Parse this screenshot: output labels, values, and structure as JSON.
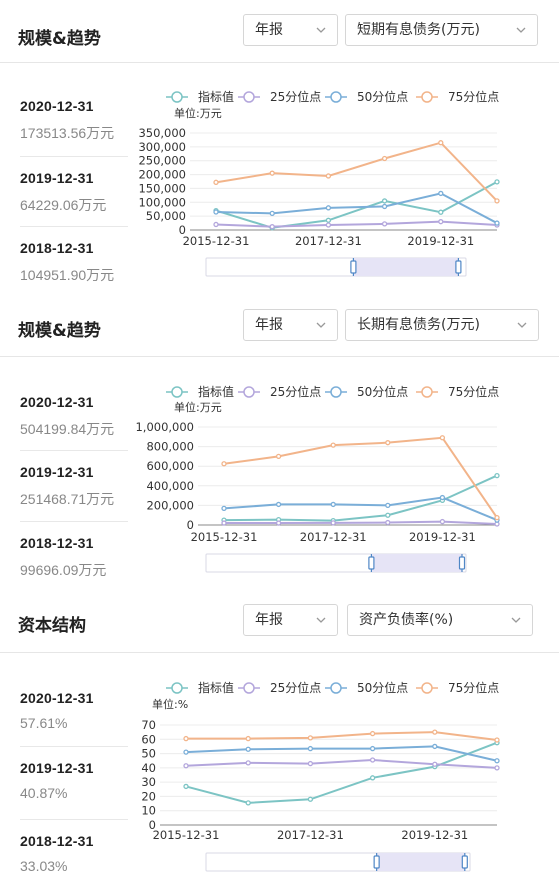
{
  "sections": [
    {
      "title": "规模&趋势",
      "period_select": "年报",
      "metric_select": "短期有息债务(万元)",
      "stats": [
        {
          "date": "2020-12-31",
          "value": "173513.56万元"
        },
        {
          "date": "2019-12-31",
          "value": "64229.06万元"
        },
        {
          "date": "2018-12-31",
          "value": "104951.90万元"
        }
      ]
    },
    {
      "title": "规模&趋势",
      "period_select": "年报",
      "metric_select": "长期有息债务(万元)",
      "stats": [
        {
          "date": "2020-12-31",
          "value": "504199.84万元"
        },
        {
          "date": "2019-12-31",
          "value": "251468.71万元"
        },
        {
          "date": "2018-12-31",
          "value": "99696.09万元"
        }
      ]
    },
    {
      "title": "资本结构",
      "period_select": "年报",
      "metric_select": "资产负债率(%)",
      "stats": [
        {
          "date": "2020-12-31",
          "value": "57.61%"
        },
        {
          "date": "2019-12-31",
          "value": "40.87%"
        },
        {
          "date": "2018-12-31",
          "value": "33.03%"
        }
      ]
    }
  ],
  "colors": {
    "indicator": "#7cc4c4",
    "p25": "#b3a6dc",
    "p50": "#7aaed8",
    "p75": "#f2b48a",
    "grid": "#ececec",
    "axis": "#333333",
    "slider_fill": "#e6e4f6",
    "handle": "#4f87c6"
  },
  "chart_data": [
    {
      "type": "line",
      "unit_label": "单位:万元",
      "x": [
        "2015-12-31",
        "2016-12-31",
        "2017-12-31",
        "2018-12-31",
        "2019-12-31",
        "2020-12-31"
      ],
      "x_tick_labels": [
        "2015-12-31",
        "2017-12-31",
        "2019-12-31"
      ],
      "y_ticks": [
        "0",
        "50,000",
        "100,000",
        "150,000",
        "200,000",
        "250,000",
        "300,000",
        "350,000"
      ],
      "ylim": [
        0,
        350000
      ],
      "grid": true,
      "legend": "top",
      "series": [
        {
          "name": "指标值",
          "color_key": "indicator",
          "values": [
            70000,
            8000,
            35000,
            104951.9,
            64229.06,
            173513.56
          ]
        },
        {
          "name": "25分位点",
          "color_key": "p25",
          "values": [
            20000,
            12000,
            18000,
            22000,
            30000,
            18000
          ]
        },
        {
          "name": "50分位点",
          "color_key": "p50",
          "values": [
            65000,
            60000,
            80000,
            85000,
            132000,
            25000
          ]
        },
        {
          "name": "75分位点",
          "color_key": "p75",
          "values": [
            172000,
            205000,
            195000,
            258000,
            315000,
            105000
          ]
        }
      ],
      "slider_range": [
        0.74,
        0.94
      ]
    },
    {
      "type": "line",
      "unit_label": "单位:万元",
      "x": [
        "2015-12-31",
        "2016-12-31",
        "2017-12-31",
        "2018-12-31",
        "2019-12-31",
        "2020-12-31"
      ],
      "x_tick_labels": [
        "2015-12-31",
        "2017-12-31",
        "2019-12-31"
      ],
      "y_ticks": [
        "0",
        "200,000",
        "400,000",
        "600,000",
        "800,000",
        "1,000,000"
      ],
      "ylim": [
        0,
        1000000
      ],
      "grid": true,
      "legend": "top",
      "series": [
        {
          "name": "指标值",
          "color_key": "indicator",
          "values": [
            50000,
            55000,
            45000,
            99696.09,
            251468.71,
            504199.84
          ]
        },
        {
          "name": "25分位点",
          "color_key": "p25",
          "values": [
            20000,
            20000,
            22000,
            25000,
            35000,
            10000
          ]
        },
        {
          "name": "50分位点",
          "color_key": "p50",
          "values": [
            170000,
            210000,
            210000,
            200000,
            280000,
            50000
          ]
        },
        {
          "name": "75分位点",
          "color_key": "p75",
          "values": [
            625000,
            700000,
            815000,
            840000,
            890000,
            75000
          ]
        }
      ],
      "slider_range": [
        0.79,
        0.96
      ]
    },
    {
      "type": "line",
      "unit_label": "单位:%",
      "x": [
        "2015-12-31",
        "2016-12-31",
        "2017-12-31",
        "2018-12-31",
        "2019-12-31",
        "2020-12-31"
      ],
      "x_tick_labels": [
        "2015-12-31",
        "2017-12-31",
        "2019-12-31"
      ],
      "y_ticks": [
        "0",
        "10",
        "20",
        "30",
        "40",
        "50",
        "60",
        "70"
      ],
      "ylim": [
        0,
        70
      ],
      "grid": true,
      "legend": "top",
      "series": [
        {
          "name": "指标值",
          "color_key": "indicator",
          "values": [
            27,
            15.5,
            18,
            33.03,
            40.87,
            57.61
          ]
        },
        {
          "name": "25分位点",
          "color_key": "p25",
          "values": [
            41.5,
            43.5,
            43,
            45.5,
            42.5,
            40
          ]
        },
        {
          "name": "50分位点",
          "color_key": "p50",
          "values": [
            51,
            53,
            53.5,
            53.5,
            55,
            45
          ]
        },
        {
          "name": "75分位点",
          "color_key": "p75",
          "values": [
            60.5,
            60.5,
            61,
            64,
            65,
            59.5
          ]
        }
      ],
      "slider_range": [
        0.76,
        0.95
      ]
    }
  ]
}
